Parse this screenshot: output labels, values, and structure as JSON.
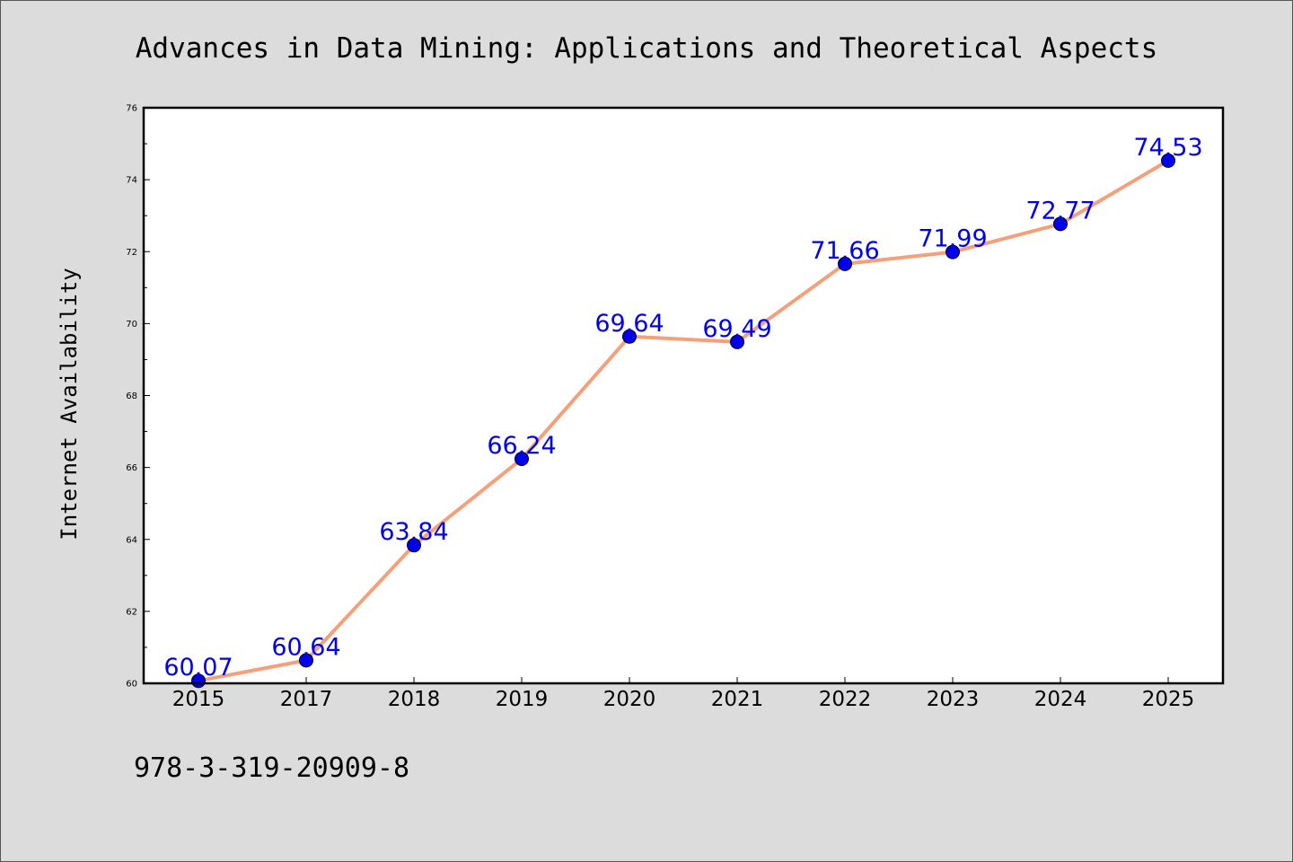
{
  "colors": {
    "background": "#dcdcdc",
    "plot_background": "#ffffff",
    "line": "#f5a07a",
    "marker": "#0000ee",
    "data_label": "#0000ee",
    "text": "#000000"
  },
  "isbn": "978-3-319-20909-8",
  "chart_data": {
    "type": "line",
    "title": "Advances in Data Mining: Applications and Theoretical Aspects",
    "xlabel": "",
    "ylabel": "Internet Availability",
    "categories": [
      "2015",
      "2017",
      "2018",
      "2019",
      "2020",
      "2021",
      "2022",
      "2023",
      "2024",
      "2025"
    ],
    "series": [
      {
        "values": [
          60.07,
          60.64,
          63.84,
          66.24,
          69.64,
          69.49,
          71.66,
          71.99,
          72.77,
          74.53
        ],
        "data_labels": [
          "60.07",
          "60.64",
          "63.84",
          "66.24",
          "69.64",
          "69.49",
          "71.66",
          "71.99",
          "72.77",
          "74.53"
        ]
      }
    ],
    "ylim": [
      60,
      76
    ],
    "yticks": [
      "60",
      "62",
      "64",
      "66",
      "68",
      "70",
      "72",
      "74",
      "76"
    ],
    "grid": false,
    "legend": "none"
  }
}
